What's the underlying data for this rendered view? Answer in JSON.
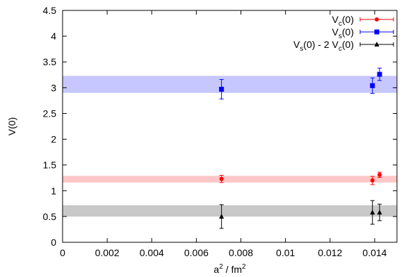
{
  "chart_data": {
    "type": "scatter",
    "xlabel": {
      "base": "a",
      "sup1": "2",
      "mid": " / fm",
      "sup2": "2"
    },
    "ylabel": "V(0)",
    "xlim": [
      0,
      0.015
    ],
    "ylim": [
      0,
      4.5
    ],
    "x_ticks": [
      0,
      0.002,
      0.004,
      0.006,
      0.008,
      0.01,
      0.012,
      0.014
    ],
    "x_tick_labels": [
      "0",
      "0.002",
      "0.004",
      "0.006",
      "0.008",
      "0.01",
      "0.012",
      "0.014"
    ],
    "y_ticks": [
      0,
      0.5,
      1,
      1.5,
      2,
      2.5,
      3,
      3.5,
      4,
      4.5
    ],
    "y_tick_labels": [
      "0",
      "0.5",
      "1",
      "1.5",
      "2",
      "2.5",
      "3",
      "3.5",
      "4",
      "4.5"
    ],
    "grid": false,
    "legend_position": "top-right",
    "legend": [
      {
        "parts": [
          [
            "V",
            ""
          ],
          [
            "c",
            "sub"
          ],
          [
            "(0)",
            ""
          ]
        ]
      },
      {
        "parts": [
          [
            "V",
            ""
          ],
          [
            "s",
            "sub"
          ],
          [
            "(0)",
            ""
          ]
        ]
      },
      {
        "parts": [
          [
            "V",
            ""
          ],
          [
            "s",
            "sub"
          ],
          [
            "(0) - 2 V",
            ""
          ],
          [
            "c",
            "sub"
          ],
          [
            "(0)",
            ""
          ]
        ]
      }
    ],
    "series": [
      {
        "color": "#ff0000",
        "marker": "circle",
        "band": {
          "ymin": 1.16,
          "ymax": 1.29,
          "color": "#ffc7c7"
        },
        "points": [
          {
            "x": 0.00713,
            "y": 1.23,
            "yerr": 0.07
          },
          {
            "x": 0.0139,
            "y": 1.2,
            "yerr": 0.08
          },
          {
            "x": 0.01422,
            "y": 1.31,
            "yerr": 0.05
          }
        ]
      },
      {
        "color": "#0000ff",
        "marker": "square",
        "band": {
          "ymin": 2.9,
          "ymax": 3.23,
          "color": "#c7c7ff"
        },
        "points": [
          {
            "x": 0.00713,
            "y": 2.97,
            "yerr": 0.19
          },
          {
            "x": 0.0139,
            "y": 3.04,
            "yerr": 0.15
          },
          {
            "x": 0.01422,
            "y": 3.26,
            "yerr": 0.12
          }
        ]
      },
      {
        "color": "#000000",
        "marker": "triangle",
        "band": {
          "ymin": 0.5,
          "ymax": 0.72,
          "color": "#c8c8c8"
        },
        "points": [
          {
            "x": 0.00713,
            "y": 0.5,
            "yerr": 0.23
          },
          {
            "x": 0.0139,
            "y": 0.58,
            "yerr": 0.23
          },
          {
            "x": 0.01422,
            "y": 0.58,
            "yerr": 0.16
          }
        ]
      }
    ]
  }
}
